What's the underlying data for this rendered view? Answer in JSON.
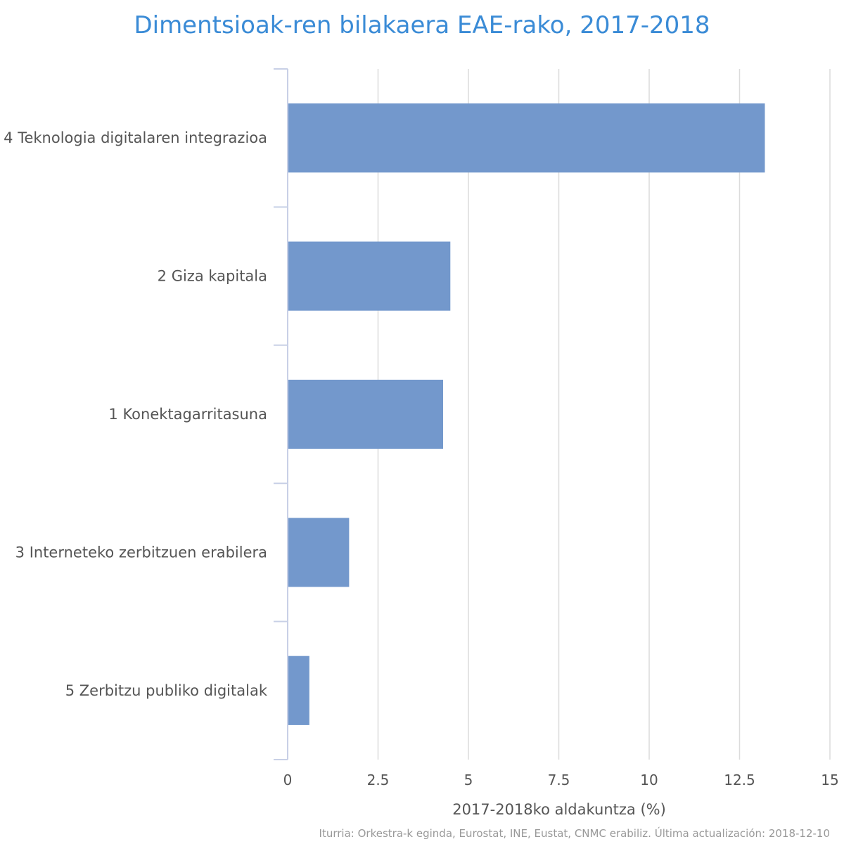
{
  "chart_data": {
    "type": "bar",
    "orientation": "horizontal",
    "title": "Dimentsioak-ren bilakaera EAE-rako, 2017-2018",
    "xlabel": "2017-2018ko aldakuntza (%)",
    "ylabel": "",
    "categories": [
      "4 Teknologia digitalaren integrazioa",
      "2 Giza kapitala",
      "1 Konektagarritasuna",
      "3 Interneteko zerbitzuen erabilera",
      "5 Zerbitzu publiko digitalak"
    ],
    "values": [
      13.2,
      4.5,
      4.3,
      1.7,
      0.6
    ],
    "xlim": [
      0,
      15
    ],
    "xticks": [
      0,
      2.5,
      5,
      7.5,
      10,
      12.5,
      15
    ],
    "xtick_labels": [
      "0",
      "2.5",
      "5",
      "7.5",
      "10",
      "12.5",
      "15"
    ],
    "grid": true,
    "legend": "none",
    "bar_color": "#7398cc",
    "title_color": "#3a8bd6",
    "source": "Iturria: Orkestra-k eginda, Eurostat, INE, Eustat, CNMC erabiliz. Última actualización: 2018-12-10"
  }
}
